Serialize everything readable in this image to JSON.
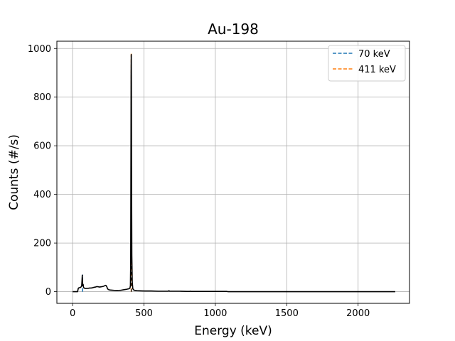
{
  "chart_data": {
    "type": "line",
    "title": "Au-198",
    "xlabel": "Energy (keV)",
    "ylabel": "Counts (#/s)",
    "xlim": [
      -110,
      2360
    ],
    "ylim": [
      -48,
      1030
    ],
    "xticks": [
      0,
      500,
      1000,
      1500,
      2000
    ],
    "yticks": [
      0,
      200,
      400,
      600,
      800,
      1000
    ],
    "grid": true,
    "legend_position": "top-right",
    "spectrum": {
      "color": "#000000",
      "x": [
        0,
        35,
        40,
        45,
        55,
        60,
        64,
        66,
        68,
        70,
        72,
        74,
        76,
        80,
        85,
        90,
        100,
        110,
        120,
        130,
        140,
        150,
        160,
        170,
        180,
        190,
        200,
        210,
        220,
        230,
        235,
        240,
        245,
        250,
        255,
        260,
        280,
        300,
        320,
        340,
        360,
        380,
        395,
        402,
        405,
        407,
        409,
        410,
        411,
        412,
        413,
        415,
        418,
        422,
        430,
        450,
        500,
        550,
        600,
        650,
        670,
        675,
        680,
        685,
        690,
        700,
        750,
        800,
        820,
        825,
        830,
        850,
        900,
        1000,
        1080,
        1090,
        1100,
        1200,
        1400,
        1600,
        1800,
        2000,
        2200,
        2260
      ],
      "y": [
        0,
        0,
        14,
        16,
        17,
        20,
        25,
        45,
        68,
        35,
        25,
        30,
        20,
        15,
        14,
        13,
        14,
        14,
        15,
        15,
        16,
        18,
        19,
        21,
        20,
        19,
        20,
        21,
        23,
        26,
        25,
        20,
        12,
        9,
        8,
        7,
        6,
        5,
        5,
        6,
        8,
        10,
        12,
        15,
        25,
        120,
        600,
        890,
        975,
        860,
        520,
        150,
        40,
        12,
        6,
        4,
        3,
        3,
        2,
        2,
        2,
        4,
        2,
        2,
        2,
        2,
        2,
        1,
        1,
        2,
        1,
        1,
        1,
        1,
        1,
        0,
        0,
        0,
        0,
        0,
        0,
        0,
        0,
        0
      ]
    },
    "series": [
      {
        "name": "70 keV",
        "type": "vline",
        "x": 70,
        "y_range": [
          0,
          70
        ],
        "color": "#1f77b4",
        "dash": true
      },
      {
        "name": "411 keV",
        "type": "vline",
        "x": 411,
        "y_range": [
          0,
          980
        ],
        "color": "#ff7f0e",
        "dash": true
      }
    ]
  }
}
